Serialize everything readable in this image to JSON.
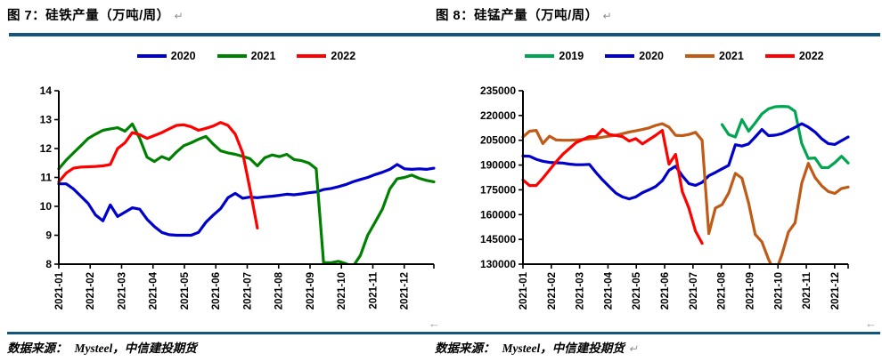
{
  "report": {
    "source_label": "数据来源：",
    "source_value": "Mysteel，中信建投期货",
    "return_mark": "↵",
    "corner_mark": "←"
  },
  "colors": {
    "rule_navy": "#14557E",
    "blue_2020": "#0000CC",
    "green_2021": "#008000",
    "red_2022": "#FF0000",
    "green_2019": "#00A550",
    "orange_2021": "#C05A17",
    "axis_black": "#000000",
    "mark_gray": "#9A9A9A"
  },
  "figures": [
    {
      "title": "图 7：硅铁产量（万吨/周）"
    },
    {
      "title": "图 8：硅锰产量（万吨/周）"
    }
  ],
  "chart_data": [
    {
      "type": "line",
      "title": "图 7：硅铁产量（万吨/周）",
      "xlabel": "",
      "ylabel": "",
      "x_unit": "week",
      "x_tick_labels": [
        "2021-01",
        "2021-02",
        "2021-03",
        "2021-04",
        "2021-05",
        "2021-06",
        "2021-07",
        "2021-08",
        "2021-09",
        "2021-10",
        "2021-11",
        "2021-12"
      ],
      "total_weeks": 52,
      "weeks_per_month": 4.27,
      "ylim": [
        8,
        14
      ],
      "y_ticks": [
        8,
        9,
        10,
        11,
        12,
        13,
        14
      ],
      "grid": false,
      "legend_position": "top",
      "series": [
        {
          "name": "2020",
          "color": "#0000CC",
          "start_week": 1,
          "values": [
            10.78,
            10.78,
            10.6,
            10.35,
            10.1,
            9.7,
            9.5,
            10.05,
            9.65,
            9.8,
            9.95,
            9.9,
            9.55,
            9.3,
            9.1,
            9.02,
            9.0,
            9.0,
            9.0,
            9.1,
            9.45,
            9.7,
            9.92,
            10.3,
            10.45,
            10.28,
            10.32,
            10.3,
            10.33,
            10.35,
            10.38,
            10.42,
            10.4,
            10.43,
            10.47,
            10.5,
            10.58,
            10.62,
            10.68,
            10.75,
            10.85,
            10.93,
            11.0,
            11.1,
            11.18,
            11.28,
            11.45,
            11.3,
            11.28,
            11.3,
            11.28,
            11.32
          ]
        },
        {
          "name": "2021",
          "color": "#008000",
          "start_week": 1,
          "values": [
            11.3,
            11.6,
            11.85,
            12.1,
            12.35,
            12.5,
            12.63,
            12.68,
            12.72,
            12.6,
            12.85,
            12.35,
            11.7,
            11.55,
            11.72,
            11.62,
            11.88,
            12.1,
            12.2,
            12.32,
            12.42,
            12.15,
            11.92,
            11.85,
            11.8,
            11.73,
            11.65,
            11.4,
            11.68,
            11.78,
            11.72,
            11.8,
            11.62,
            11.58,
            11.5,
            11.3,
            8.05,
            8.05,
            8.1,
            8.02,
            7.92,
            8.3,
            9.0,
            9.45,
            9.9,
            10.6,
            10.95,
            11.0,
            11.08,
            10.97,
            10.9,
            10.85
          ]
        },
        {
          "name": "2022",
          "color": "#FF0000",
          "start_week": 1,
          "values": [
            10.85,
            11.15,
            11.32,
            11.36,
            11.37,
            11.38,
            11.4,
            11.45,
            12.0,
            12.2,
            12.55,
            12.48,
            12.35,
            12.45,
            12.55,
            12.68,
            12.8,
            12.82,
            12.75,
            12.63,
            12.7,
            12.78,
            12.9,
            12.8,
            12.5,
            11.85,
            10.6,
            9.25
          ]
        }
      ]
    },
    {
      "type": "line",
      "title": "图 8：硅锰产量（万吨/周）",
      "xlabel": "",
      "ylabel": "",
      "x_unit": "week",
      "x_tick_labels": [
        "2021-01",
        "2021-02",
        "2021-03",
        "2021-04",
        "2021-05",
        "2021-06",
        "2021-07",
        "2021-08",
        "2021-09",
        "2021-10",
        "2021-11",
        "2021-12"
      ],
      "total_weeks": 50,
      "weeks_per_month": 4.27,
      "ylim": [
        130000,
        235000
      ],
      "y_ticks": [
        130000,
        145000,
        160000,
        175000,
        190000,
        205000,
        220000,
        235000
      ],
      "grid": false,
      "legend_position": "top",
      "series": [
        {
          "name": "2019",
          "color": "#00A550",
          "start_week": 31,
          "values": [
            214500,
            208500,
            207000,
            217500,
            210500,
            215500,
            221000,
            224000,
            225300,
            225500,
            225300,
            222500,
            203000,
            194000,
            194300,
            188500,
            188400,
            191500,
            195300,
            191200
          ]
        },
        {
          "name": "2020",
          "color": "#0000CC",
          "start_week": 1,
          "values": [
            195500,
            195300,
            193500,
            192300,
            191600,
            191400,
            191200,
            190600,
            190200,
            190200,
            190400,
            185500,
            181000,
            177000,
            173000,
            170700,
            169500,
            170700,
            173300,
            175000,
            177000,
            180500,
            186800,
            189300,
            183500,
            178800,
            177700,
            179500,
            183500,
            185500,
            187700,
            189800,
            202300,
            201500,
            202800,
            207000,
            211500,
            207800,
            208100,
            209000,
            210800,
            212800,
            215000,
            213000,
            210000,
            206000,
            203000,
            202500,
            204800,
            207000
          ]
        },
        {
          "name": "2021",
          "color": "#C05A17",
          "start_week": 1,
          "values": [
            207000,
            210500,
            211000,
            203000,
            207500,
            205200,
            205000,
            205000,
            205200,
            205500,
            205800,
            206300,
            206900,
            207500,
            208100,
            209000,
            210000,
            210700,
            211500,
            212500,
            214000,
            215000,
            213000,
            208000,
            207800,
            208500,
            209800,
            205000,
            148500,
            164000,
            166000,
            173000,
            185000,
            182000,
            167000,
            148000,
            143500,
            133000,
            124500,
            135500,
            149500,
            155000,
            179000,
            191000,
            182500,
            177500,
            174000,
            172800,
            175800,
            176700
          ]
        },
        {
          "name": "2022",
          "color": "#FF0000",
          "start_week": 1,
          "values": [
            181000,
            177600,
            177600,
            182000,
            187000,
            192000,
            196500,
            200000,
            203600,
            205400,
            207200,
            207200,
            211500,
            208500,
            207900,
            207200,
            204500,
            206000,
            202800,
            205400,
            208000,
            211000,
            190500,
            196500,
            174000,
            164000,
            150000,
            142600
          ]
        }
      ]
    }
  ]
}
